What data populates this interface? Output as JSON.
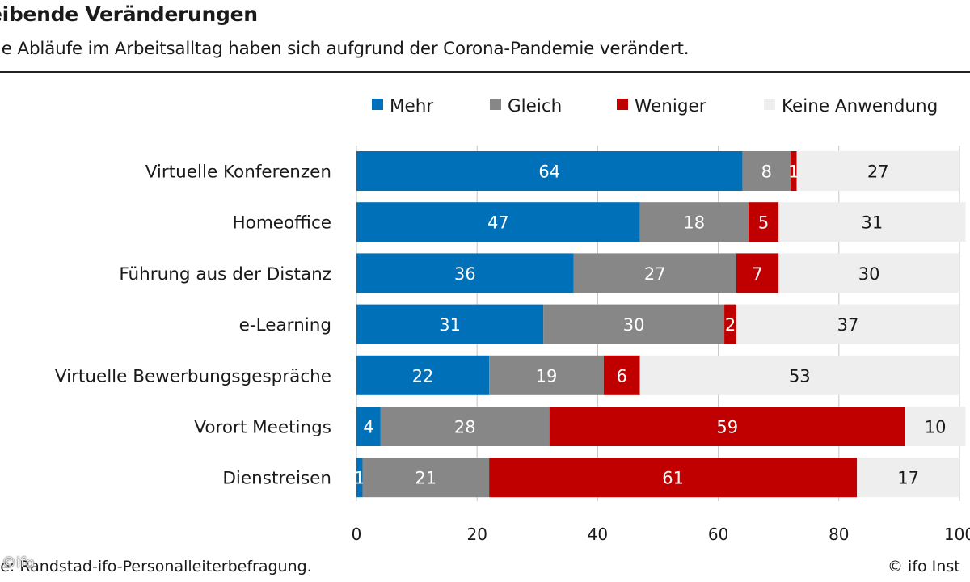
{
  "header": {
    "title": "eibende Veränderungen",
    "subtitle": "le Abläufe im Arbeitsalltag haben sich aufgrund der Corona-Pandemie verändert."
  },
  "footer": {
    "source": "elle: Randstad-ifo-Personalleiterbefragung.",
    "credit": "© ifo Inst",
    "watermark": "©ifo"
  },
  "colors": {
    "Mehr": "#0070b8",
    "Gleich": "#878787",
    "Weniger": "#c00000",
    "Keine Anwendung": "#eeeeee"
  },
  "chart_data": {
    "type": "bar",
    "orientation": "horizontal",
    "stacked": true,
    "title": "eibende Veränderungen",
    "subtitle": "le Abläufe im Arbeitsalltag haben sich aufgrund der Corona-Pandemie verändert.",
    "categories": [
      "Virtuelle Konferenzen",
      "Homeoffice",
      "Führung aus der Distanz",
      "e-Learning",
      "Virtuelle Bewerbungsgespräche",
      "Vorort Meetings",
      "Dienstreisen"
    ],
    "series": [
      {
        "name": "Mehr",
        "values": [
          64,
          47,
          36,
          31,
          22,
          4,
          1
        ]
      },
      {
        "name": "Gleich",
        "values": [
          8,
          18,
          27,
          30,
          19,
          28,
          21
        ]
      },
      {
        "name": "Weniger",
        "values": [
          1,
          5,
          7,
          2,
          6,
          59,
          61
        ]
      },
      {
        "name": "Keine Anwendung",
        "values": [
          27,
          31,
          30,
          37,
          53,
          10,
          17
        ]
      }
    ],
    "xlim": [
      0,
      100
    ],
    "xticks": [
      "0",
      "20",
      "40",
      "60",
      "80",
      "100"
    ],
    "legend_position": "top-right",
    "grid": true
  }
}
